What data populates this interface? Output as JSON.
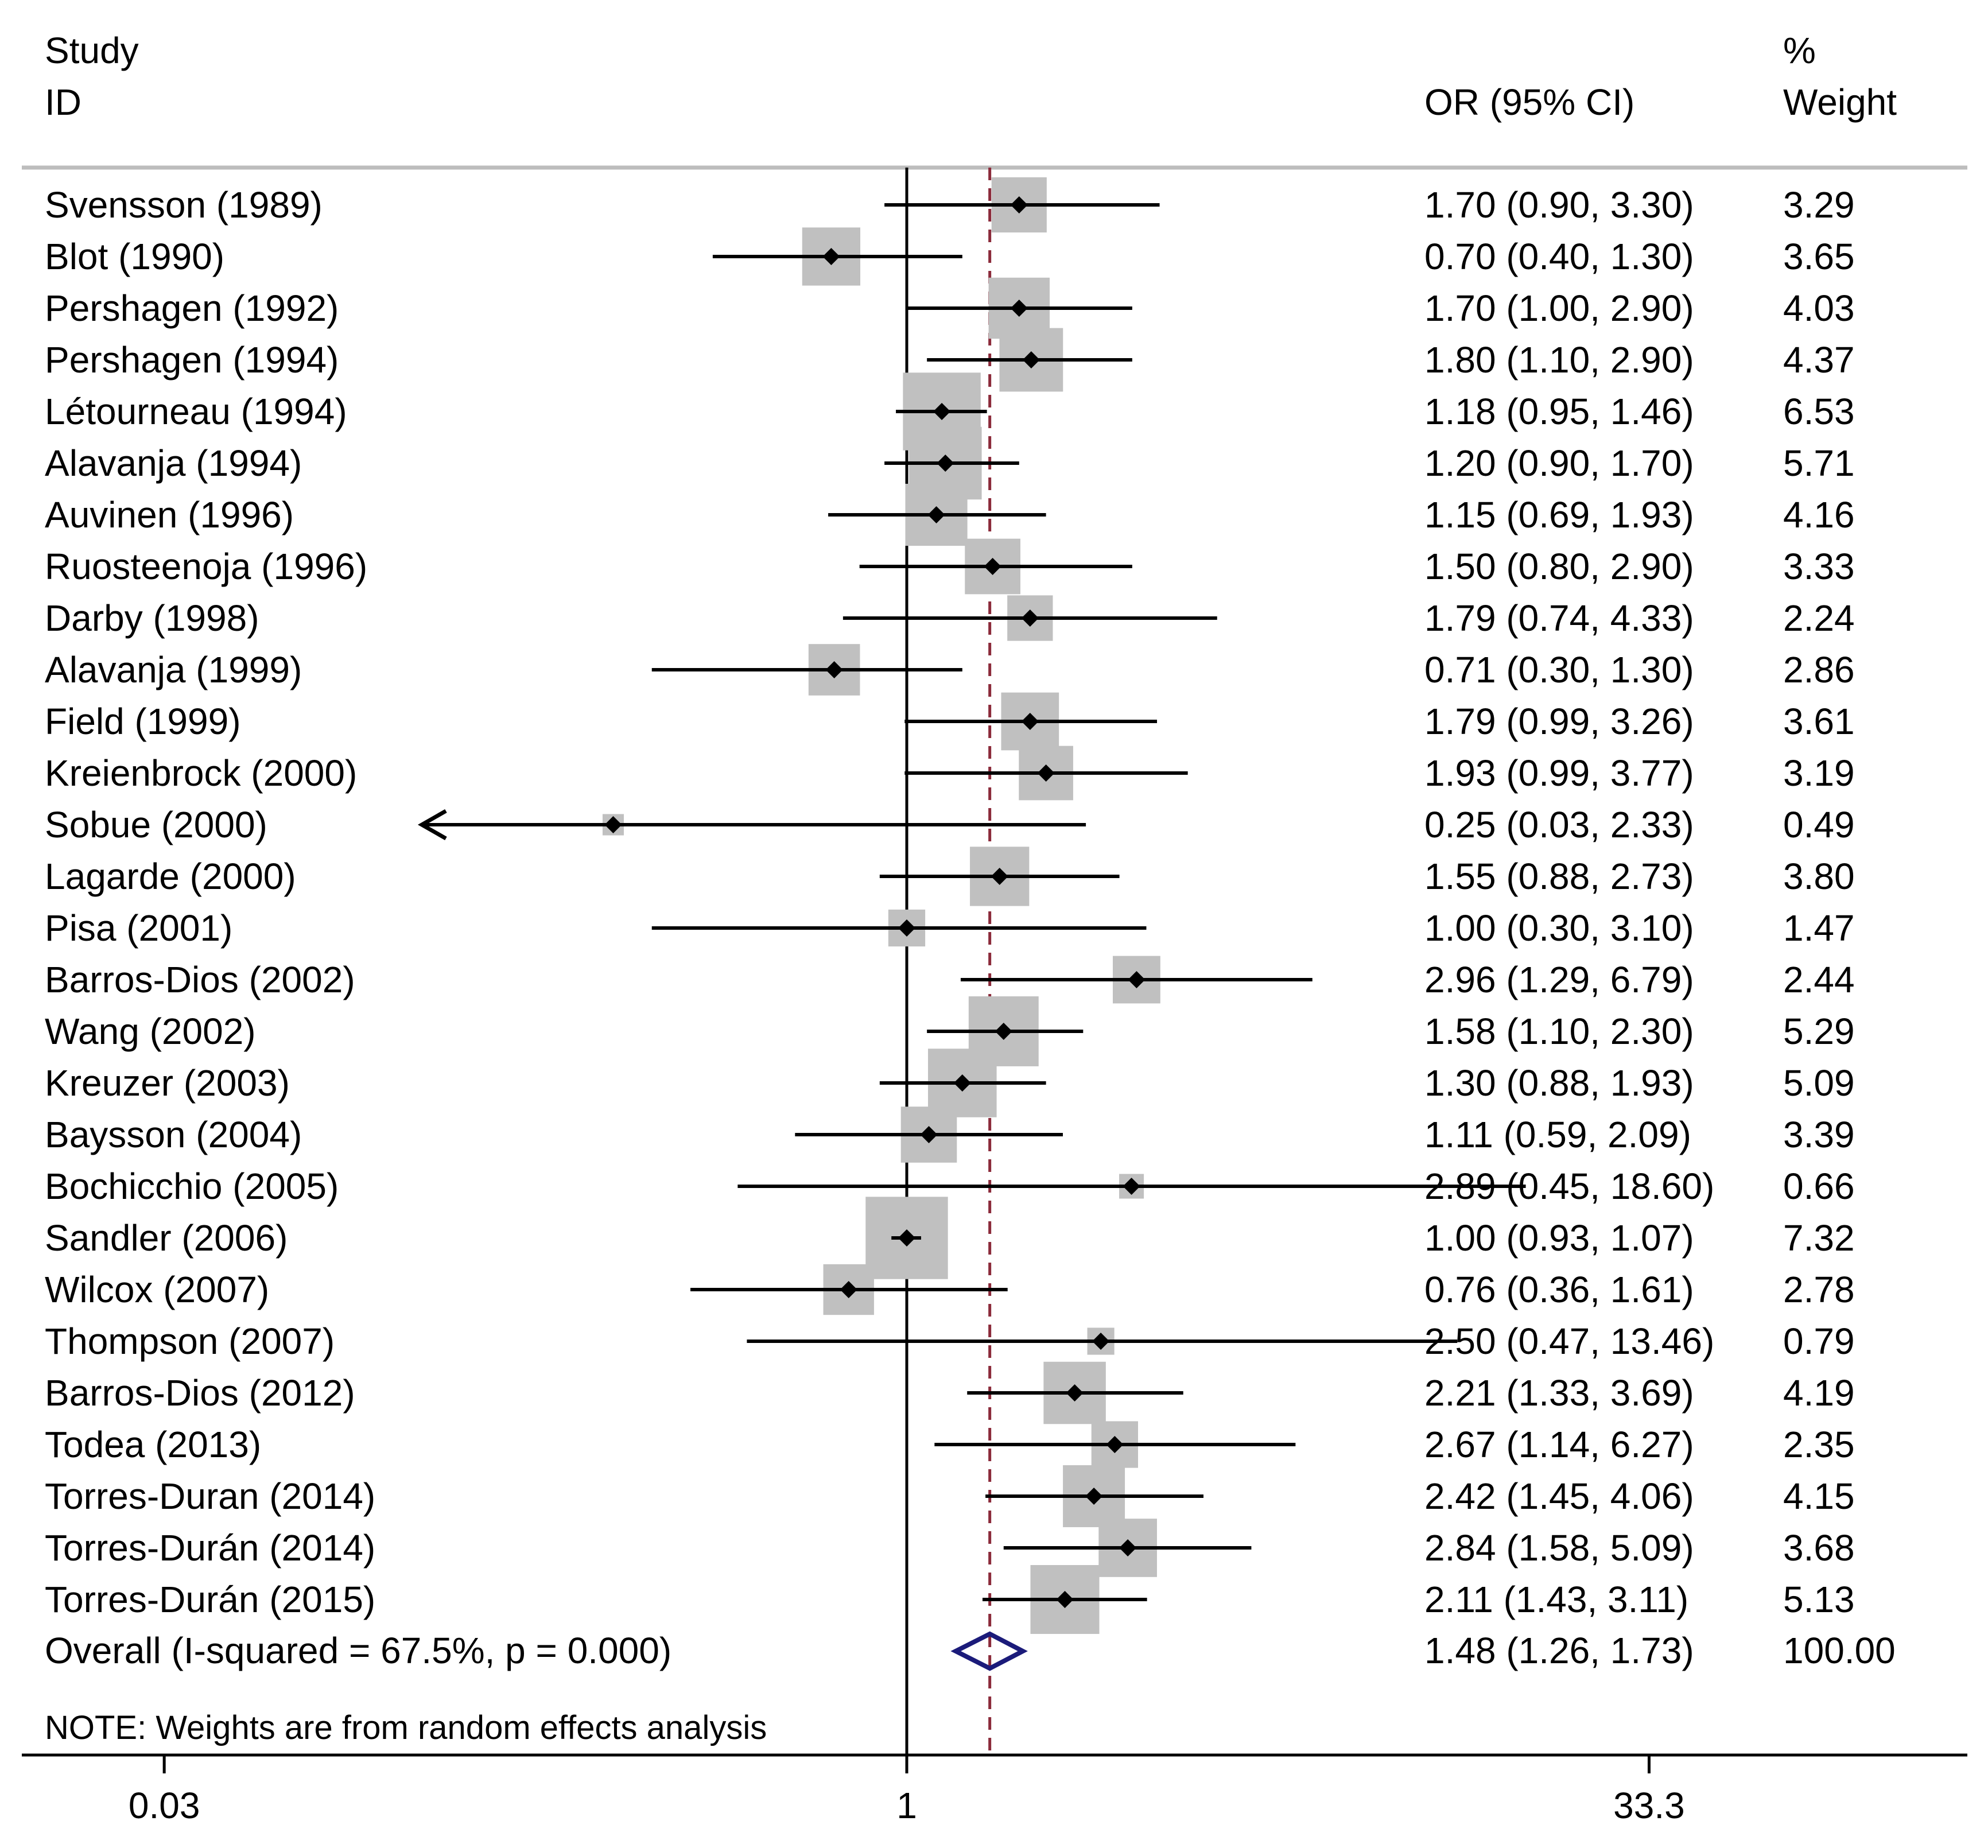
{
  "chart_data": {
    "type": "forest",
    "headers": {
      "study_line1": "Study",
      "study_line2": "ID",
      "estimate": "OR (95% CI)",
      "weight_line1": "%",
      "weight_line2": "Weight"
    },
    "studies": [
      {
        "label": "Svensson (1989)",
        "or": 1.7,
        "lo": 0.9,
        "hi": 3.3,
        "ci_text": "1.70 (0.90, 3.30)",
        "weight": 3.29,
        "weight_text": "3.29"
      },
      {
        "label": "Blot (1990)",
        "or": 0.7,
        "lo": 0.4,
        "hi": 1.3,
        "ci_text": "0.70 (0.40, 1.30)",
        "weight": 3.65,
        "weight_text": "3.65"
      },
      {
        "label": "Pershagen (1992)",
        "or": 1.7,
        "lo": 1.0,
        "hi": 2.9,
        "ci_text": "1.70 (1.00, 2.90)",
        "weight": 4.03,
        "weight_text": "4.03"
      },
      {
        "label": "Pershagen (1994)",
        "or": 1.8,
        "lo": 1.1,
        "hi": 2.9,
        "ci_text": "1.80 (1.10, 2.90)",
        "weight": 4.37,
        "weight_text": "4.37"
      },
      {
        "label": "Létourneau (1994)",
        "or": 1.18,
        "lo": 0.95,
        "hi": 1.46,
        "ci_text": "1.18 (0.95, 1.46)",
        "weight": 6.53,
        "weight_text": "6.53"
      },
      {
        "label": "Alavanja (1994)",
        "or": 1.2,
        "lo": 0.9,
        "hi": 1.7,
        "ci_text": "1.20 (0.90, 1.70)",
        "weight": 5.71,
        "weight_text": "5.71"
      },
      {
        "label": "Auvinen (1996)",
        "or": 1.15,
        "lo": 0.69,
        "hi": 1.93,
        "ci_text": "1.15 (0.69, 1.93)",
        "weight": 4.16,
        "weight_text": "4.16"
      },
      {
        "label": "Ruosteenoja (1996)",
        "or": 1.5,
        "lo": 0.8,
        "hi": 2.9,
        "ci_text": "1.50 (0.80, 2.90)",
        "weight": 3.33,
        "weight_text": "3.33"
      },
      {
        "label": "Darby (1998)",
        "or": 1.79,
        "lo": 0.74,
        "hi": 4.33,
        "ci_text": "1.79 (0.74, 4.33)",
        "weight": 2.24,
        "weight_text": "2.24"
      },
      {
        "label": "Alavanja (1999)",
        "or": 0.71,
        "lo": 0.3,
        "hi": 1.3,
        "ci_text": "0.71 (0.30, 1.30)",
        "weight": 2.86,
        "weight_text": "2.86"
      },
      {
        "label": "Field (1999)",
        "or": 1.79,
        "lo": 0.99,
        "hi": 3.26,
        "ci_text": "1.79 (0.99, 3.26)",
        "weight": 3.61,
        "weight_text": "3.61"
      },
      {
        "label": "Kreienbrock (2000)",
        "or": 1.93,
        "lo": 0.99,
        "hi": 3.77,
        "ci_text": "1.93 (0.99, 3.77)",
        "weight": 3.19,
        "weight_text": "3.19"
      },
      {
        "label": "Sobue (2000)",
        "or": 0.25,
        "lo": 0.03,
        "hi": 2.33,
        "ci_text": "0.25 (0.03, 2.33)",
        "weight": 0.49,
        "weight_text": "0.49",
        "lo_arrow": true
      },
      {
        "label": "Lagarde (2000)",
        "or": 1.55,
        "lo": 0.88,
        "hi": 2.73,
        "ci_text": "1.55 (0.88, 2.73)",
        "weight": 3.8,
        "weight_text": "3.80"
      },
      {
        "label": "Pisa (2001)",
        "or": 1.0,
        "lo": 0.3,
        "hi": 3.1,
        "ci_text": "1.00 (0.30, 3.10)",
        "weight": 1.47,
        "weight_text": "1.47"
      },
      {
        "label": "Barros-Dios (2002)",
        "or": 2.96,
        "lo": 1.29,
        "hi": 6.79,
        "ci_text": "2.96 (1.29, 6.79)",
        "weight": 2.44,
        "weight_text": "2.44"
      },
      {
        "label": "Wang (2002)",
        "or": 1.58,
        "lo": 1.1,
        "hi": 2.3,
        "ci_text": "1.58 (1.10, 2.30)",
        "weight": 5.29,
        "weight_text": "5.29"
      },
      {
        "label": "Kreuzer (2003)",
        "or": 1.3,
        "lo": 0.88,
        "hi": 1.93,
        "ci_text": "1.30 (0.88, 1.93)",
        "weight": 5.09,
        "weight_text": "5.09"
      },
      {
        "label": "Baysson (2004)",
        "or": 1.11,
        "lo": 0.59,
        "hi": 2.09,
        "ci_text": "1.11 (0.59, 2.09)",
        "weight": 3.39,
        "weight_text": "3.39"
      },
      {
        "label": "Bochicchio (2005)",
        "or": 2.89,
        "lo": 0.45,
        "hi": 18.6,
        "ci_text": "2.89 (0.45, 18.60)",
        "weight": 0.66,
        "weight_text": "0.66"
      },
      {
        "label": "Sandler (2006)",
        "or": 1.0,
        "lo": 0.93,
        "hi": 1.07,
        "ci_text": "1.00 (0.93, 1.07)",
        "weight": 7.32,
        "weight_text": "7.32"
      },
      {
        "label": "Wilcox (2007)",
        "or": 0.76,
        "lo": 0.36,
        "hi": 1.61,
        "ci_text": "0.76 (0.36, 1.61)",
        "weight": 2.78,
        "weight_text": "2.78"
      },
      {
        "label": "Thompson (2007)",
        "or": 2.5,
        "lo": 0.47,
        "hi": 13.46,
        "ci_text": "2.50 (0.47, 13.46)",
        "weight": 0.79,
        "weight_text": "0.79"
      },
      {
        "label": "Barros-Dios (2012)",
        "or": 2.21,
        "lo": 1.33,
        "hi": 3.69,
        "ci_text": "2.21 (1.33, 3.69)",
        "weight": 4.19,
        "weight_text": "4.19"
      },
      {
        "label": "Todea (2013)",
        "or": 2.67,
        "lo": 1.14,
        "hi": 6.27,
        "ci_text": "2.67 (1.14, 6.27)",
        "weight": 2.35,
        "weight_text": "2.35"
      },
      {
        "label": "Torres-Duran (2014)",
        "or": 2.42,
        "lo": 1.45,
        "hi": 4.06,
        "ci_text": "2.42 (1.45, 4.06)",
        "weight": 4.15,
        "weight_text": "4.15"
      },
      {
        "label": "Torres-Durán (2014)",
        "or": 2.84,
        "lo": 1.58,
        "hi": 5.09,
        "ci_text": "2.84 (1.58, 5.09)",
        "weight": 3.68,
        "weight_text": "3.68"
      },
      {
        "label": "Torres-Durán (2015)",
        "or": 2.11,
        "lo": 1.43,
        "hi": 3.11,
        "ci_text": "2.11 (1.43, 3.11)",
        "weight": 5.13,
        "weight_text": "5.13"
      }
    ],
    "overall": {
      "label": "Overall  (I-squared = 67.5%, p = 0.000)",
      "or": 1.48,
      "lo": 1.26,
      "hi": 1.73,
      "ci_text": "1.48 (1.26, 1.73)",
      "weight_text": "100.00"
    },
    "note": "NOTE: Weights are from random effects analysis",
    "x_axis": {
      "scale": "log",
      "ticks": [
        0.03,
        1,
        33.3
      ],
      "tick_labels": [
        "0.03",
        "1",
        "33.3"
      ],
      "null_line": 1
    },
    "colors": {
      "box": "#c0c0c0",
      "text": "#000000",
      "overall_diamond": "#1b1b7a",
      "overall_line": "#8b2a3a",
      "rule": "#bdbdbd"
    }
  }
}
